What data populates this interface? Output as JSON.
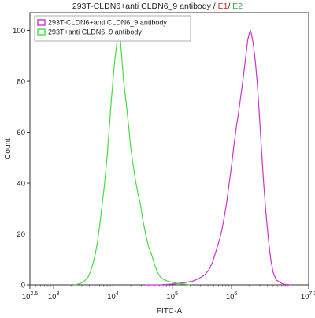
{
  "title": {
    "main": "293T-CLDN6+anti CLDN6_9 antibody",
    "sep1": " / ",
    "e1": "E1",
    "sep2": "/ ",
    "e2": "E2"
  },
  "colors": {
    "e1": "#d4281c",
    "e2": "#2fa845",
    "magenta_series": "#cc33cc",
    "green_series": "#44dd44"
  },
  "chart_data": {
    "type": "line",
    "xlabel": "FITC-A",
    "ylabel": "Count",
    "x_scale": "log",
    "xlim_log10": [
      2.6,
      7.3
    ],
    "ylim": [
      0,
      107
    ],
    "x_ticks": [
      {
        "base": "10",
        "exp": "2.6"
      },
      {
        "base": "10",
        "exp": "3"
      },
      {
        "base": "10",
        "exp": "4"
      },
      {
        "base": "10",
        "exp": "5"
      },
      {
        "base": "10",
        "exp": "6"
      },
      {
        "base": "10",
        "exp": "7.3"
      }
    ],
    "y_ticks": [
      "0",
      "20",
      "40",
      "60",
      "80",
      "100"
    ],
    "y_tick_values": [
      0,
      20,
      40,
      60,
      80,
      100
    ],
    "grid": false,
    "legend_position": "top-left",
    "series": [
      {
        "name": "293T-CLDN6+anti CLDN6_9 antibody",
        "color": "#cc33cc",
        "x_log10": [
          4.55,
          4.8,
          5.0,
          5.2,
          5.35,
          5.45,
          5.55,
          5.62,
          5.68,
          5.72,
          5.76,
          5.8,
          5.84,
          5.88,
          5.92,
          5.96,
          6.0,
          6.04,
          6.08,
          6.12,
          6.16,
          6.2,
          6.24,
          6.27,
          6.3,
          6.32,
          6.34,
          6.37,
          6.4,
          6.43,
          6.46,
          6.5,
          6.54,
          6.58,
          6.62,
          6.66,
          6.7,
          6.75,
          6.82,
          6.9,
          7.0
        ],
        "y": [
          0,
          0,
          0.3,
          0.8,
          1.5,
          2.5,
          4,
          6,
          9,
          12,
          15,
          18,
          22,
          27,
          33,
          40,
          47,
          55,
          62,
          68,
          75,
          82,
          90,
          96,
          99,
          100,
          98,
          94,
          88,
          80,
          70,
          55,
          40,
          28,
          18,
          10,
          5,
          2,
          0.8,
          0.2,
          0
        ]
      },
      {
        "name": "293T+anti CLDN6_9 antibody",
        "color": "#44dd44",
        "x_log10": [
          3.35,
          3.45,
          3.52,
          3.58,
          3.62,
          3.66,
          3.7,
          3.74,
          3.78,
          3.82,
          3.86,
          3.9,
          3.94,
          3.97,
          4.0,
          4.03,
          4.06,
          4.08,
          4.1,
          4.12,
          4.14,
          4.16,
          4.18,
          4.21,
          4.24,
          4.27,
          4.3,
          4.34,
          4.38,
          4.42,
          4.46,
          4.5,
          4.55,
          4.6,
          4.65,
          4.7,
          4.75,
          4.8,
          4.86,
          4.92,
          5.0,
          5.1,
          5.2,
          5.3
        ],
        "y": [
          0,
          0.5,
          1.5,
          3,
          5,
          8,
          12,
          17,
          24,
          32,
          40,
          50,
          62,
          72,
          80,
          88,
          94,
          98,
          100,
          98,
          92,
          86,
          80,
          74,
          68,
          61,
          54,
          47,
          41,
          36,
          32,
          26,
          20,
          15,
          12,
          8,
          5,
          3,
          2,
          1.5,
          1,
          0.5,
          0.3,
          0
        ]
      }
    ]
  }
}
